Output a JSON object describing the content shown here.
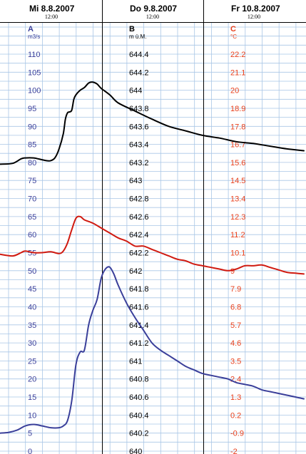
{
  "chart_data": {
    "type": "line",
    "header": {
      "days": [
        "Mi  8.8.2007",
        "Do  9.8.2007",
        "Fr  10.8.2007"
      ],
      "noon_label": "12:00"
    },
    "x_range_hours": [
      0,
      72
    ],
    "axes": {
      "A": {
        "letter": "A",
        "unit": "m3/s",
        "color": "#3a3f9a",
        "ylim": [
          0,
          115
        ],
        "ticks": [
          "110",
          "105",
          "100",
          "95",
          "90",
          "85",
          "80",
          "75",
          "70",
          "65",
          "60",
          "55",
          "50",
          "45",
          "40",
          "35",
          "30",
          "25",
          "20",
          "15",
          "10",
          "5",
          "0"
        ]
      },
      "B": {
        "letter": "B",
        "unit": "m ü.M.",
        "color": "#000000",
        "ylim": [
          640,
          644.6
        ],
        "ticks": [
          "644.4",
          "644.2",
          "644",
          "643.8",
          "643.6",
          "643.4",
          "643.2",
          "643",
          "642.8",
          "642.6",
          "642.4",
          "642.2",
          "642",
          "641.8",
          "641.6",
          "641.4",
          "641.2",
          "641",
          "640.8",
          "640.6",
          "640.4",
          "640.2",
          "640"
        ]
      },
      "C": {
        "letter": "C",
        "unit": "°C",
        "color": "#e8401c",
        "ylim": [
          -2,
          23.3
        ],
        "ticks": [
          "22.2",
          "21.1",
          "20",
          "18.9",
          "17.8",
          "16.7",
          "15.6",
          "14.5",
          "13.4",
          "12.3",
          "11.2",
          "10.1",
          "9",
          "7.9",
          "6.8",
          "5.7",
          "4.6",
          "3.5",
          "2.4",
          "1.3",
          "0.2",
          "-0.9",
          "-2"
        ]
      }
    },
    "series": [
      {
        "axis": "B",
        "color": "#000000",
        "points": [
          [
            0,
            643.18
          ],
          [
            3,
            643.19
          ],
          [
            5,
            643.24
          ],
          [
            6,
            643.25
          ],
          [
            8,
            643.25
          ],
          [
            9,
            643.24
          ],
          [
            11,
            643.22
          ],
          [
            12,
            643.22
          ],
          [
            13,
            643.25
          ],
          [
            14,
            643.35
          ],
          [
            15,
            643.52
          ],
          [
            15.5,
            643.68
          ],
          [
            16,
            643.75
          ],
          [
            16.5,
            643.76
          ],
          [
            17,
            643.78
          ],
          [
            17.5,
            643.9
          ],
          [
            18,
            643.95
          ],
          [
            19,
            644.0
          ],
          [
            20,
            644.03
          ],
          [
            21,
            644.08
          ],
          [
            22,
            644.09
          ],
          [
            23,
            644.07
          ],
          [
            24,
            644.02
          ],
          [
            26,
            643.95
          ],
          [
            28,
            643.86
          ],
          [
            32,
            643.77
          ],
          [
            36,
            643.68
          ],
          [
            40,
            643.6
          ],
          [
            44,
            643.55
          ],
          [
            48,
            643.5
          ],
          [
            52,
            643.47
          ],
          [
            56,
            643.43
          ],
          [
            60,
            643.41
          ],
          [
            64,
            643.38
          ],
          [
            68,
            643.35
          ],
          [
            72,
            643.33
          ]
        ]
      },
      {
        "axis": "C",
        "color": "#d01a10",
        "points": [
          [
            0,
            10.0
          ],
          [
            3,
            9.9
          ],
          [
            5,
            10.1
          ],
          [
            6,
            10.2
          ],
          [
            8,
            10.1
          ],
          [
            10,
            10.1
          ],
          [
            12,
            10.15
          ],
          [
            14,
            10.05
          ],
          [
            15,
            10.2
          ],
          [
            16,
            10.7
          ],
          [
            17,
            11.5
          ],
          [
            18,
            12.2
          ],
          [
            19,
            12.3
          ],
          [
            20,
            12.1
          ],
          [
            22,
            11.9
          ],
          [
            24,
            11.6
          ],
          [
            26,
            11.3
          ],
          [
            28,
            11.0
          ],
          [
            30,
            10.8
          ],
          [
            32,
            10.5
          ],
          [
            34,
            10.5
          ],
          [
            36,
            10.3
          ],
          [
            38,
            10.1
          ],
          [
            40,
            9.9
          ],
          [
            42,
            9.7
          ],
          [
            44,
            9.6
          ],
          [
            46,
            9.4
          ],
          [
            48,
            9.3
          ],
          [
            50,
            9.2
          ],
          [
            52,
            9.1
          ],
          [
            54,
            9.0
          ],
          [
            56,
            9.1
          ],
          [
            58,
            9.3
          ],
          [
            60,
            9.3
          ],
          [
            62,
            9.35
          ],
          [
            64,
            9.2
          ],
          [
            66,
            9.05
          ],
          [
            68,
            8.9
          ],
          [
            70,
            8.85
          ],
          [
            72,
            8.8
          ]
        ]
      },
      {
        "axis": "A",
        "color": "#3a3f9a",
        "points": [
          [
            0,
            5.0
          ],
          [
            2,
            5.2
          ],
          [
            4,
            5.8
          ],
          [
            6,
            7.0
          ],
          [
            8,
            7.4
          ],
          [
            10,
            7.0
          ],
          [
            12,
            6.5
          ],
          [
            14,
            6.5
          ],
          [
            15,
            7.0
          ],
          [
            16,
            8.5
          ],
          [
            17,
            14.0
          ],
          [
            18,
            24.0
          ],
          [
            19,
            27.5
          ],
          [
            20,
            28.0
          ],
          [
            21,
            35.0
          ],
          [
            22,
            39.0
          ],
          [
            23,
            42.0
          ],
          [
            24,
            48.0
          ],
          [
            25,
            50.5
          ],
          [
            26,
            51.0
          ],
          [
            27,
            49.0
          ],
          [
            28,
            46.0
          ],
          [
            30,
            41.0
          ],
          [
            32,
            37.0
          ],
          [
            34,
            33.5
          ],
          [
            36,
            30.0
          ],
          [
            38,
            28.0
          ],
          [
            40,
            26.5
          ],
          [
            42,
            25.0
          ],
          [
            44,
            23.5
          ],
          [
            46,
            22.5
          ],
          [
            48,
            21.5
          ],
          [
            50,
            21.0
          ],
          [
            52,
            20.5
          ],
          [
            54,
            20.0
          ],
          [
            56,
            19.0
          ],
          [
            58,
            18.5
          ],
          [
            60,
            18.0
          ],
          [
            62,
            17.0
          ],
          [
            64,
            16.5
          ],
          [
            66,
            16.0
          ],
          [
            68,
            15.5
          ],
          [
            70,
            15.0
          ],
          [
            72,
            14.5
          ]
        ]
      }
    ],
    "grid": true
  }
}
